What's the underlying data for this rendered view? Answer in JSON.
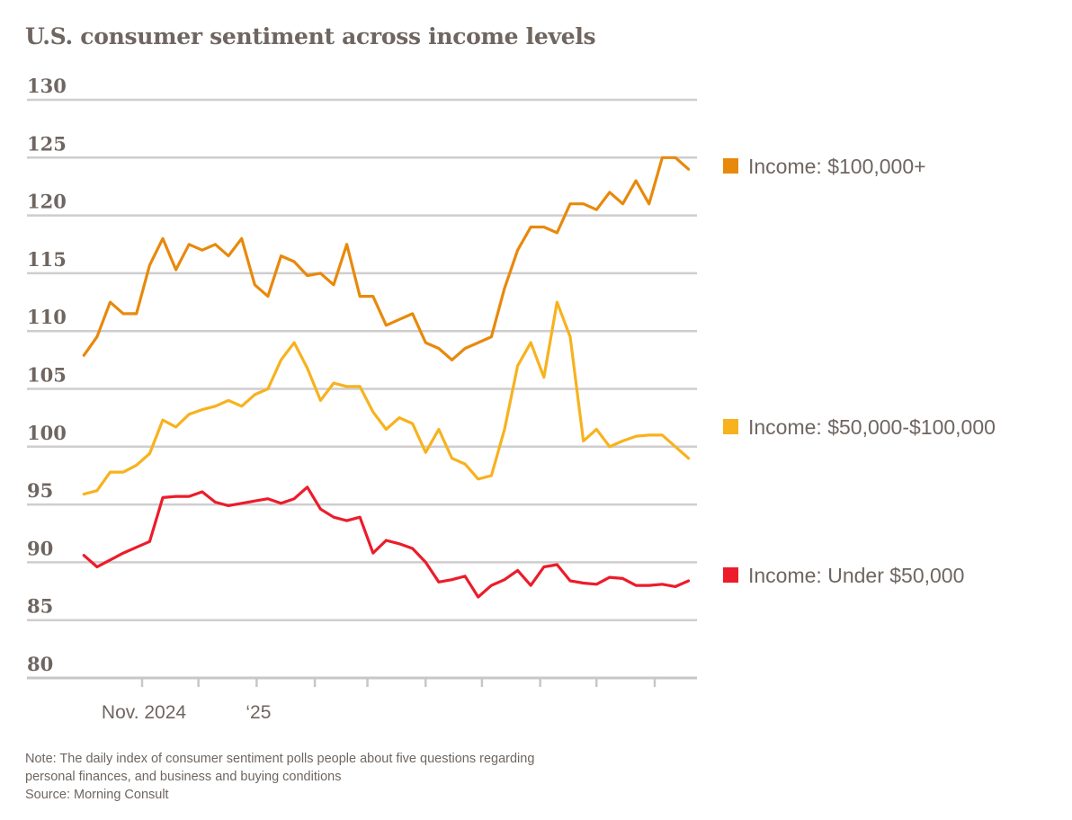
{
  "chart_data": {
    "type": "line",
    "title": "U.S. consumer sentiment across income levels",
    "xlabel": "",
    "ylabel": "",
    "ylim": [
      80,
      130
    ],
    "y_ticks": [
      "80",
      "85",
      "90",
      "95",
      "100",
      "105",
      "110",
      "115",
      "120",
      "125",
      "130"
    ],
    "x_range": [
      "2024-10-01",
      "2025-08-21"
    ],
    "x_ticks": [
      {
        "date": "2024-11-01",
        "label": "Nov. 2024"
      },
      {
        "date": "2024-12-01",
        "label": ""
      },
      {
        "date": "2025-01-01",
        "label": "‘25"
      },
      {
        "date": "2025-02-01",
        "label": ""
      },
      {
        "date": "2025-03-01",
        "label": ""
      },
      {
        "date": "2025-04-01",
        "label": ""
      },
      {
        "date": "2025-05-01",
        "label": ""
      },
      {
        "date": "2025-06-01",
        "label": ""
      },
      {
        "date": "2025-07-01",
        "label": ""
      },
      {
        "date": "2025-08-01",
        "label": ""
      }
    ],
    "grid": true,
    "legend_placement": "right, at line ends",
    "x": [
      "2024-10-01",
      "2024-10-08",
      "2024-10-15",
      "2024-10-22",
      "2024-10-29",
      "2024-11-05",
      "2024-11-12",
      "2024-11-19",
      "2024-11-26",
      "2024-12-03",
      "2024-12-10",
      "2024-12-17",
      "2024-12-24",
      "2024-12-31",
      "2025-01-07",
      "2025-01-14",
      "2025-01-21",
      "2025-01-28",
      "2025-02-04",
      "2025-02-11",
      "2025-02-18",
      "2025-02-25",
      "2025-03-04",
      "2025-03-11",
      "2025-03-18",
      "2025-03-25",
      "2025-04-01",
      "2025-04-08",
      "2025-04-15",
      "2025-04-22",
      "2025-04-29",
      "2025-05-06",
      "2025-05-13",
      "2025-05-20",
      "2025-05-27",
      "2025-06-03",
      "2025-06-10",
      "2025-06-17",
      "2025-06-24",
      "2025-07-01",
      "2025-07-08",
      "2025-07-15",
      "2025-07-22",
      "2025-07-29",
      "2025-08-05",
      "2025-08-12",
      "2025-08-19"
    ],
    "series": [
      {
        "name": "Income: $100,000+",
        "color": "#E8890C",
        "values": [
          107.9,
          109.5,
          112.5,
          111.5,
          111.5,
          115.7,
          118,
          115.3,
          117.5,
          117,
          117.5,
          116.5,
          118,
          114,
          113,
          116.5,
          116,
          114.8,
          115,
          114,
          117.5,
          113,
          113,
          110.5,
          111,
          111.5,
          109,
          108.5,
          107.5,
          108.5,
          109,
          109.5,
          113.7,
          117,
          119,
          119,
          118.5,
          121,
          121,
          120.5,
          122,
          121,
          123,
          121,
          125,
          125,
          124
        ]
      },
      {
        "name": "Income: $50,000-$100,000",
        "color": "#F7B21E",
        "values": [
          95.9,
          96.2,
          97.8,
          97.8,
          98.4,
          99.4,
          102.3,
          101.7,
          102.8,
          103.2,
          103.5,
          104,
          103.5,
          104.5,
          105,
          107.5,
          109,
          106.8,
          104,
          105.5,
          105.2,
          105.2,
          103,
          101.5,
          102.5,
          102,
          99.5,
          101.5,
          99,
          98.5,
          97.2,
          97.5,
          101.5,
          107,
          109,
          106,
          112.5,
          109.5,
          100.5,
          101.5,
          100,
          100.5,
          100.9,
          101,
          101,
          100,
          99
        ]
      },
      {
        "name": "Income: Under $50,000",
        "color": "#EC1C2B",
        "values": [
          90.6,
          89.6,
          90.2,
          90.8,
          91.3,
          91.8,
          95.6,
          95.7,
          95.7,
          96.1,
          95.2,
          94.9,
          95.1,
          95.3,
          95.5,
          95.1,
          95.5,
          96.5,
          94.6,
          93.9,
          93.6,
          93.9,
          90.8,
          91.9,
          91.6,
          91.2,
          90,
          88.3,
          88.5,
          88.8,
          87,
          88,
          88.5,
          89.3,
          88,
          89.6,
          89.8,
          88.4,
          88.2,
          88.1,
          88.7,
          88.6,
          88,
          88,
          88.1,
          87.9,
          88.4
        ]
      }
    ]
  },
  "note": {
    "line1": "Note: The daily index of consumer sentiment polls people about five questions regarding",
    "line2": "personal finances, and business and buying conditions",
    "source": "Source: Morning Consult"
  }
}
